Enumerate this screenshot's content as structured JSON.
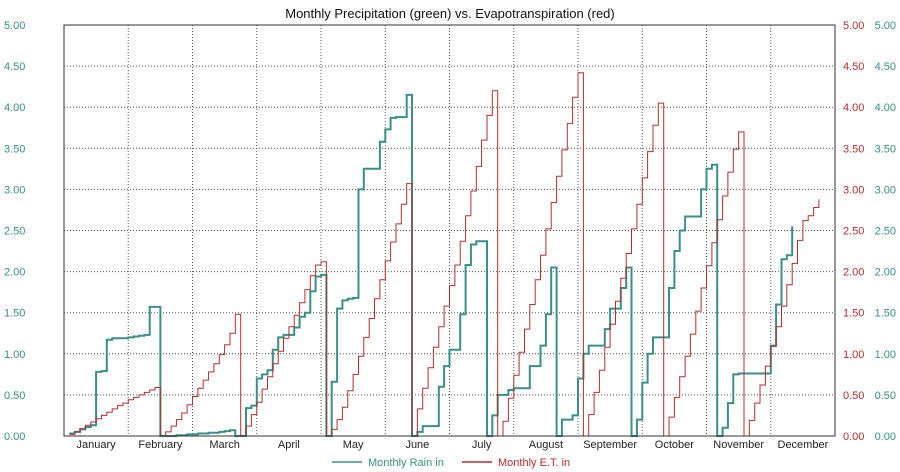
{
  "chart_data": {
    "type": "line",
    "title": "Monthly Precipitation (green) vs. Evapotranspiration (red)",
    "xlabel": "",
    "ylabel": "",
    "ylim": [
      0,
      5
    ],
    "y_ticks": [
      "0.00",
      "0.50",
      "1.00",
      "1.50",
      "2.00",
      "2.50",
      "3.00",
      "3.50",
      "4.00",
      "4.50",
      "5.00"
    ],
    "months": [
      "January",
      "February",
      "March",
      "April",
      "May",
      "June",
      "July",
      "August",
      "September",
      "October",
      "November",
      "December"
    ],
    "grid": true,
    "legend_position": "bottom",
    "colors": {
      "rain": "#3b8f88",
      "et": "#b03030",
      "left_axis": "#3b8f88",
      "right_axis_inner": "#b03030",
      "right_axis_outer": "#3b8f88"
    },
    "series": [
      {
        "name": "Monthly Rain in",
        "color": "#3b8f88",
        "points": [
          [
            1,
            0.03
          ],
          [
            2,
            0.05
          ],
          [
            3,
            0.08
          ],
          [
            4,
            0.11
          ],
          [
            5,
            0.13
          ],
          [
            6,
            0.78
          ],
          [
            7,
            0.79
          ],
          [
            8,
            1.17
          ],
          [
            9,
            1.19
          ],
          [
            10,
            1.19
          ],
          [
            11,
            1.19
          ],
          [
            12,
            1.2
          ],
          [
            13,
            1.21
          ],
          [
            14,
            1.22
          ],
          [
            15,
            1.23
          ],
          [
            16,
            1.57
          ],
          [
            17,
            1.57
          ],
          [
            18,
            0.0
          ],
          [
            19,
            0.0
          ],
          [
            20,
            0.0
          ],
          [
            21,
            0.01
          ],
          [
            22,
            0.01
          ],
          [
            23,
            0.02
          ],
          [
            24,
            0.02
          ],
          [
            25,
            0.03
          ],
          [
            26,
            0.03
          ],
          [
            27,
            0.04
          ],
          [
            28,
            0.04
          ],
          [
            29,
            0.05
          ],
          [
            30,
            0.06
          ],
          [
            31,
            0.07
          ],
          [
            32,
            0.0
          ],
          [
            33,
            0.0
          ],
          [
            34,
            0.34
          ],
          [
            35,
            0.37
          ],
          [
            36,
            0.7
          ],
          [
            37,
            0.75
          ],
          [
            38,
            0.8
          ],
          [
            39,
            1.05
          ],
          [
            40,
            1.2
          ],
          [
            41,
            1.23
          ],
          [
            42,
            1.23
          ],
          [
            43,
            1.32
          ],
          [
            44,
            1.45
          ],
          [
            45,
            1.5
          ],
          [
            46,
            1.76
          ],
          [
            47,
            1.94
          ],
          [
            48,
            1.96
          ],
          [
            49,
            0.0
          ],
          [
            50,
            0.66
          ],
          [
            51,
            1.55
          ],
          [
            52,
            1.65
          ],
          [
            53,
            1.67
          ],
          [
            54,
            1.68
          ],
          [
            55,
            3.0
          ],
          [
            56,
            3.25
          ],
          [
            57,
            3.25
          ],
          [
            58,
            3.25
          ],
          [
            59,
            3.58
          ],
          [
            60,
            3.73
          ],
          [
            61,
            3.87
          ],
          [
            62,
            3.88
          ],
          [
            63,
            3.88
          ],
          [
            64,
            4.15
          ],
          [
            65,
            0.0
          ],
          [
            66,
            0.05
          ],
          [
            67,
            0.12
          ],
          [
            68,
            0.12
          ],
          [
            69,
            0.12
          ],
          [
            70,
            0.6
          ],
          [
            71,
            0.85
          ],
          [
            72,
            1.05
          ],
          [
            73,
            1.05
          ],
          [
            74,
            1.48
          ],
          [
            75,
            2.08
          ],
          [
            76,
            2.33
          ],
          [
            77,
            2.37
          ],
          [
            78,
            2.37
          ],
          [
            79,
            0.0
          ],
          [
            80,
            0.25
          ],
          [
            81,
            0.5
          ],
          [
            82,
            0.5
          ],
          [
            83,
            0.56
          ],
          [
            84,
            0.58
          ],
          [
            85,
            0.58
          ],
          [
            86,
            0.58
          ],
          [
            87,
            0.85
          ],
          [
            88,
            0.85
          ],
          [
            89,
            1.1
          ],
          [
            90,
            1.48
          ],
          [
            91,
            2.05
          ],
          [
            92,
            0.0
          ],
          [
            93,
            0.2
          ],
          [
            94,
            0.2
          ],
          [
            95,
            0.25
          ],
          [
            96,
            0.7
          ],
          [
            97,
            1.0
          ],
          [
            98,
            1.1
          ],
          [
            99,
            1.1
          ],
          [
            100,
            1.1
          ],
          [
            101,
            1.3
          ],
          [
            102,
            1.55
          ],
          [
            103,
            1.55
          ],
          [
            104,
            1.8
          ],
          [
            105,
            2.05
          ],
          [
            106,
            0.0
          ],
          [
            107,
            0.2
          ],
          [
            108,
            0.65
          ],
          [
            109,
            1.0
          ],
          [
            110,
            1.2
          ],
          [
            111,
            1.2
          ],
          [
            112,
            1.2
          ],
          [
            113,
            1.8
          ],
          [
            114,
            2.25
          ],
          [
            115,
            2.5
          ],
          [
            116,
            2.67
          ],
          [
            117,
            2.67
          ],
          [
            118,
            2.67
          ],
          [
            119,
            3.0
          ],
          [
            120,
            3.25
          ],
          [
            121,
            3.3
          ],
          [
            122,
            0.0
          ],
          [
            123,
            0.1
          ],
          [
            124,
            0.4
          ],
          [
            125,
            0.75
          ],
          [
            126,
            0.76
          ],
          [
            127,
            0.76
          ],
          [
            128,
            0.76
          ],
          [
            129,
            0.76
          ],
          [
            130,
            0.76
          ],
          [
            131,
            0.76
          ],
          [
            132,
            1.1
          ],
          [
            133,
            1.6
          ],
          [
            134,
            2.15
          ],
          [
            135,
            2.2
          ],
          [
            136,
            2.55
          ]
        ]
      },
      {
        "name": "Monthly E.T. in",
        "color": "#b03030",
        "points": [
          [
            1,
            0.02
          ],
          [
            2,
            0.05
          ],
          [
            3,
            0.09
          ],
          [
            4,
            0.13
          ],
          [
            5,
            0.17
          ],
          [
            6,
            0.21
          ],
          [
            7,
            0.25
          ],
          [
            8,
            0.29
          ],
          [
            9,
            0.33
          ],
          [
            10,
            0.37
          ],
          [
            11,
            0.4
          ],
          [
            12,
            0.44
          ],
          [
            13,
            0.47
          ],
          [
            14,
            0.5
          ],
          [
            15,
            0.53
          ],
          [
            16,
            0.56
          ],
          [
            17,
            0.59
          ],
          [
            18,
            0.0
          ],
          [
            19,
            0.05
          ],
          [
            20,
            0.12
          ],
          [
            21,
            0.2
          ],
          [
            22,
            0.28
          ],
          [
            23,
            0.38
          ],
          [
            24,
            0.48
          ],
          [
            25,
            0.58
          ],
          [
            26,
            0.68
          ],
          [
            27,
            0.78
          ],
          [
            28,
            0.88
          ],
          [
            29,
            0.99
          ],
          [
            30,
            1.11
          ],
          [
            31,
            1.25
          ],
          [
            32,
            1.48
          ],
          [
            33,
            0.0
          ],
          [
            34,
            0.12
          ],
          [
            35,
            0.26
          ],
          [
            36,
            0.41
          ],
          [
            37,
            0.57
          ],
          [
            38,
            0.72
          ],
          [
            39,
            0.88
          ],
          [
            40,
            1.03
          ],
          [
            41,
            1.19
          ],
          [
            42,
            1.33
          ],
          [
            43,
            1.47
          ],
          [
            44,
            1.62
          ],
          [
            45,
            1.78
          ],
          [
            46,
            1.95
          ],
          [
            47,
            2.08
          ],
          [
            48,
            2.12
          ],
          [
            49,
            0.0
          ],
          [
            50,
            0.08
          ],
          [
            51,
            0.2
          ],
          [
            52,
            0.35
          ],
          [
            53,
            0.55
          ],
          [
            54,
            0.75
          ],
          [
            55,
            0.97
          ],
          [
            56,
            1.2
          ],
          [
            57,
            1.43
          ],
          [
            58,
            1.67
          ],
          [
            59,
            1.9
          ],
          [
            60,
            2.13
          ],
          [
            61,
            2.36
          ],
          [
            62,
            2.58
          ],
          [
            63,
            2.82
          ],
          [
            64,
            3.07
          ],
          [
            65,
            0.0
          ],
          [
            66,
            0.33
          ],
          [
            67,
            0.58
          ],
          [
            68,
            0.83
          ],
          [
            69,
            1.08
          ],
          [
            70,
            1.33
          ],
          [
            71,
            1.58
          ],
          [
            72,
            1.83
          ],
          [
            73,
            2.08
          ],
          [
            74,
            2.37
          ],
          [
            75,
            2.68
          ],
          [
            76,
            2.98
          ],
          [
            77,
            3.28
          ],
          [
            78,
            3.6
          ],
          [
            79,
            3.9
          ],
          [
            80,
            4.2
          ],
          [
            81,
            0.0
          ],
          [
            82,
            0.18
          ],
          [
            83,
            0.46
          ],
          [
            84,
            0.74
          ],
          [
            85,
            1.02
          ],
          [
            86,
            1.3
          ],
          [
            87,
            1.6
          ],
          [
            88,
            1.9
          ],
          [
            89,
            2.2
          ],
          [
            90,
            2.52
          ],
          [
            91,
            2.84
          ],
          [
            92,
            3.16
          ],
          [
            93,
            3.48
          ],
          [
            94,
            3.8
          ],
          [
            95,
            4.12
          ],
          [
            96,
            4.42
          ],
          [
            97,
            0.0
          ],
          [
            98,
            0.26
          ],
          [
            99,
            0.53
          ],
          [
            100,
            0.8
          ],
          [
            101,
            1.08
          ],
          [
            102,
            1.36
          ],
          [
            103,
            1.64
          ],
          [
            104,
            1.92
          ],
          [
            105,
            2.22
          ],
          [
            106,
            2.52
          ],
          [
            107,
            2.82
          ],
          [
            108,
            3.14
          ],
          [
            109,
            3.46
          ],
          [
            110,
            3.78
          ],
          [
            111,
            4.05
          ],
          [
            112,
            0.0
          ],
          [
            113,
            0.23
          ],
          [
            114,
            0.47
          ],
          [
            115,
            0.72
          ],
          [
            116,
            0.97
          ],
          [
            117,
            1.24
          ],
          [
            118,
            1.52
          ],
          [
            119,
            1.8
          ],
          [
            120,
            2.07
          ],
          [
            121,
            2.35
          ],
          [
            122,
            2.63
          ],
          [
            123,
            2.92
          ],
          [
            124,
            3.21
          ],
          [
            125,
            3.49
          ],
          [
            126,
            3.7
          ],
          [
            127,
            0.0
          ],
          [
            128,
            0.19
          ],
          [
            129,
            0.4
          ],
          [
            130,
            0.62
          ],
          [
            131,
            0.85
          ],
          [
            132,
            1.09
          ],
          [
            133,
            1.33
          ],
          [
            134,
            1.58
          ],
          [
            135,
            1.84
          ],
          [
            136,
            2.1
          ],
          [
            137,
            2.38
          ],
          [
            138,
            2.62
          ],
          [
            139,
            2.68
          ],
          [
            140,
            2.78
          ],
          [
            141,
            2.88
          ]
        ]
      }
    ]
  }
}
